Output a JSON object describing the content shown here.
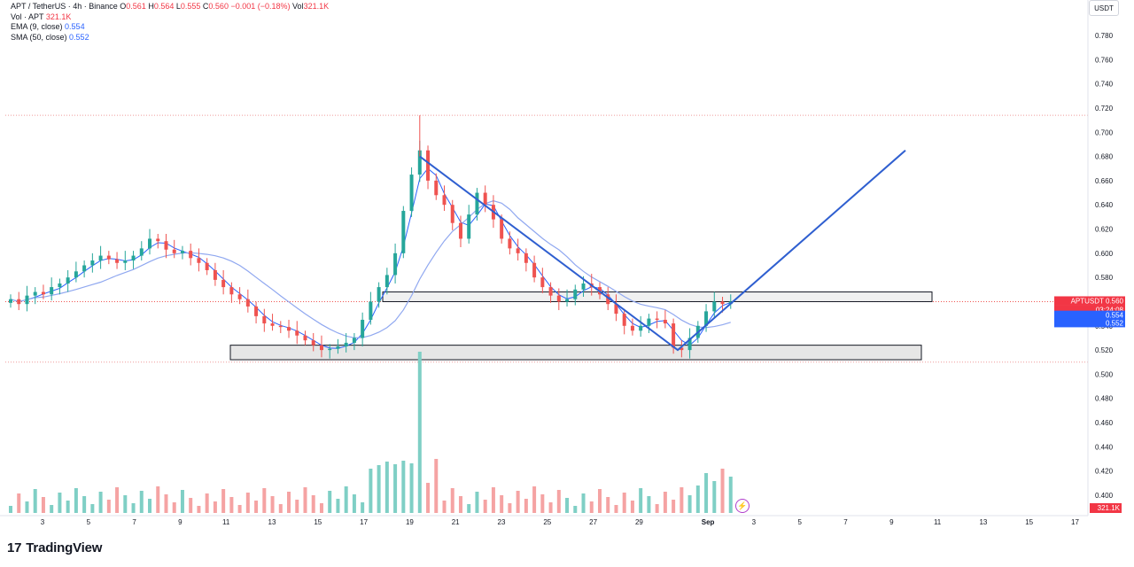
{
  "legend": {
    "symbol": "APT / TetherUS · 4h · Binance",
    "o_label": "O",
    "o_value": "0.561",
    "h_label": "H",
    "h_value": "0.564",
    "l_label": "L",
    "l_value": "0.555",
    "c_label": "C",
    "c_value": "0.560",
    "change": "−0.001 (−0.18%)",
    "vol_label": "Vol",
    "vol_value": "321.1K",
    "vol_series": "Vol · APT",
    "vol_series_value": "321.1K",
    "ema": "EMA (9, close)",
    "ema_value": "0.554",
    "sma": "SMA (50, close)",
    "sma_value": "0.552"
  },
  "currency": "USDT",
  "price_tag": {
    "symbol": "APTUSDT",
    "price": "0.560",
    "countdown": "03:24:08",
    "ema": "0.554",
    "sma": "0.552"
  },
  "volume_tag": "321.1K",
  "brand": "TradingView",
  "chart_data": {
    "type": "candlestick",
    "y_ticks": [
      "0.780",
      "0.760",
      "0.740",
      "0.720",
      "0.700",
      "0.680",
      "0.660",
      "0.640",
      "0.620",
      "0.600",
      "0.580",
      "0.560",
      "0.540",
      "0.520",
      "0.500",
      "0.480",
      "0.460",
      "0.440",
      "0.420",
      "0.400"
    ],
    "y_range": [
      0.395,
      0.79
    ],
    "x_ticks": [
      "3",
      "5",
      "7",
      "9",
      "11",
      "13",
      "15",
      "17",
      "19",
      "21",
      "23",
      "25",
      "27",
      "29",
      "Sep",
      "3",
      "5",
      "7",
      "9",
      "11",
      "13",
      "15",
      "17"
    ],
    "x_axis_unit": "day (Aug → Sep)",
    "candles_per_day": 6,
    "price_series": [
      0.562,
      0.558,
      0.565,
      0.568,
      0.566,
      0.572,
      0.575,
      0.58,
      0.585,
      0.59,
      0.594,
      0.598,
      0.595,
      0.592,
      0.594,
      0.598,
      0.604,
      0.612,
      0.61,
      0.603,
      0.6,
      0.602,
      0.596,
      0.592,
      0.586,
      0.578,
      0.572,
      0.566,
      0.562,
      0.556,
      0.548,
      0.542,
      0.54,
      0.539,
      0.536,
      0.532,
      0.528,
      0.524,
      0.52,
      0.521,
      0.523,
      0.526,
      0.53,
      0.545,
      0.56,
      0.572,
      0.582,
      0.6,
      0.635,
      0.665,
      0.685,
      0.66,
      0.648,
      0.64,
      0.625,
      0.612,
      0.632,
      0.65,
      0.64,
      0.628,
      0.612,
      0.604,
      0.6,
      0.592,
      0.58,
      0.572,
      0.565,
      0.56,
      0.562,
      0.57,
      0.575,
      0.572,
      0.566,
      0.558,
      0.55,
      0.54,
      0.536,
      0.54,
      0.546,
      0.545,
      0.542,
      0.522,
      0.52,
      0.53,
      0.54,
      0.552,
      0.56,
      0.558,
      0.56
    ],
    "ema_9_last": 0.554,
    "sma_50_last": 0.552,
    "support_zone": [
      0.512,
      0.524
    ],
    "resistance_zone": [
      0.56,
      0.568
    ],
    "horizontal_lines": [
      0.714,
      0.51
    ],
    "trendline_projection": [
      [
        0.68,
        0.52
      ],
      [
        0.52,
        0.685
      ]
    ],
    "volume_spike_day": "22"
  }
}
